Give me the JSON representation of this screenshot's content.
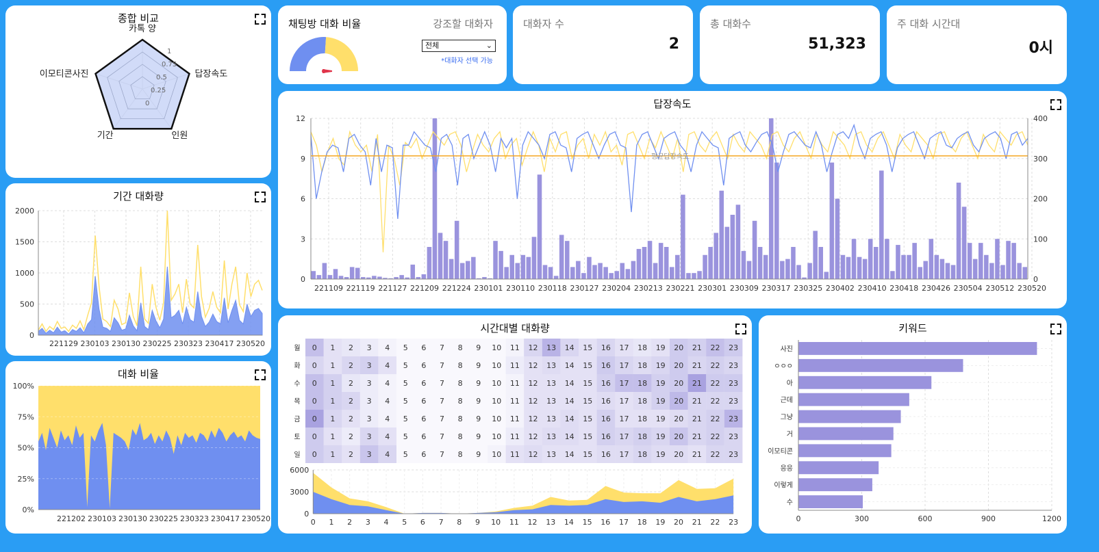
{
  "colors": {
    "blue": "#6f8ff0",
    "yellow": "#ffdf6b",
    "purple": "#9a93dd",
    "orange": "#f5a623"
  },
  "radar": {
    "title": "종합 비교",
    "axes": [
      "카톡 양",
      "답장속도",
      "인원",
      "기간",
      "이모티콘사진"
    ],
    "ticks": [
      "0",
      "0.25",
      "0.5",
      "0.75",
      "1"
    ],
    "values": [
      1,
      1,
      1,
      1,
      1
    ]
  },
  "gauge": {
    "title": "채팅방 대화 비율",
    "highlight_label": "강조할 대화자",
    "select_value": "전체",
    "hint": "*대화자 선택 가능",
    "blue_share": 0.52
  },
  "stats": {
    "speakers_label": "대화자 수",
    "speakers_value": "2",
    "total_label": "총 대화수",
    "total_value": "51,323",
    "peak_label": "주 대화 시간대",
    "peak_value": "0시"
  },
  "chart_data": [
    {
      "type": "area",
      "title": "기간 대화량",
      "ylim": [
        0,
        2000
      ],
      "yticks": [
        "0",
        "500",
        "1000",
        "1500",
        "2000"
      ],
      "xticks": [
        "221129",
        "230103",
        "230130",
        "230225",
        "230323",
        "230417",
        "230520"
      ],
      "series": [
        {
          "values": [
            60,
            110,
            30,
            80,
            40,
            130,
            50,
            70,
            20,
            90,
            60,
            120,
            40,
            180,
            250,
            950,
            420,
            130,
            110,
            60,
            280,
            200,
            80,
            100,
            320,
            150,
            70,
            520,
            140,
            90,
            400,
            230,
            120,
            260,
            1100,
            280,
            320,
            400,
            180,
            450,
            250,
            210,
            700,
            300,
            140,
            210,
            340,
            220,
            180,
            600,
            200,
            400,
            560,
            240,
            180,
            500,
            300,
            400,
            430,
            350
          ]
        },
        {
          "values": [
            80,
            180,
            60,
            140,
            90,
            220,
            110,
            130,
            60,
            160,
            110,
            230,
            90,
            320,
            520,
            1600,
            780,
            260,
            220,
            140,
            560,
            420,
            170,
            200,
            680,
            300,
            150,
            1100,
            260,
            190,
            820,
            450,
            240,
            520,
            2000,
            560,
            660,
            820,
            360,
            900,
            500,
            440,
            1450,
            620,
            290,
            430,
            700,
            450,
            360,
            1200,
            420,
            820,
            1100,
            490,
            380,
            1000,
            620,
            820,
            880,
            720
          ]
        }
      ]
    },
    {
      "type": "area",
      "title": "대화 비율",
      "yticks": [
        "0%",
        "25%",
        "50%",
        "75%",
        "100%"
      ],
      "xticks": [
        "221202",
        "230103",
        "230130",
        "230225",
        "230323",
        "230417",
        "230520"
      ],
      "series": [
        {
          "values": [
            0.55,
            0.62,
            0.48,
            0.66,
            0.58,
            0.5,
            0.64,
            0.56,
            0.6,
            0.52,
            0.68,
            0.58,
            0.62,
            0.02,
            0.6,
            0.55,
            0.64,
            0.7,
            0.52,
            0.01,
            0.62,
            0.6,
            0.58,
            0.55,
            0.48,
            0.65,
            0.6,
            0.7,
            0.56,
            0.58,
            0.62,
            0.53,
            0.6,
            0.55,
            0.64,
            0.58,
            0.45,
            0.6,
            0.52,
            0.62,
            0.58,
            0.6,
            0.54,
            0.62,
            0.6,
            0.55,
            0.64,
            0.58,
            0.66,
            0.62,
            0.55,
            0.6,
            0.63,
            0.58,
            0.6,
            0.55,
            0.64,
            0.6,
            0.58,
            0.57
          ]
        }
      ]
    },
    {
      "type": "line",
      "title": "답장속도",
      "yticks_left": [
        "0",
        "3",
        "6",
        "9",
        "12"
      ],
      "yticks_right": [
        "0",
        "100",
        "200",
        "300",
        "400"
      ],
      "xticks": [
        "221109",
        "221119",
        "221127",
        "221209",
        "221224",
        "230101",
        "230110",
        "230118",
        "230127",
        "230204",
        "230213",
        "230221",
        "230301",
        "230309",
        "230317",
        "230325",
        "230402",
        "230410",
        "230418",
        "230426",
        "230504",
        "230512",
        "230520"
      ],
      "avg_label": "평균답장속도",
      "avg_value": 9.2,
      "bars": [
        20,
        10,
        40,
        10,
        25,
        8,
        5,
        30,
        28,
        5,
        4,
        8,
        6,
        3,
        2,
        5,
        10,
        4,
        36,
        5,
        12,
        80,
        400,
        115,
        95,
        50,
        145,
        40,
        45,
        55,
        2,
        5,
        2,
        95,
        70,
        30,
        60,
        40,
        60,
        55,
        105,
        260,
        35,
        30,
        8,
        110,
        95,
        30,
        45,
        15,
        55,
        35,
        40,
        30,
        15,
        20,
        40,
        25,
        45,
        75,
        80,
        95,
        40,
        90,
        80,
        30,
        60,
        210,
        15,
        15,
        20,
        60,
        80,
        115,
        220,
        130,
        160,
        185,
        70,
        45,
        145,
        80,
        60,
        400,
        290,
        45,
        50,
        80,
        35,
        4,
        40,
        120,
        80,
        18,
        290,
        200,
        60,
        55,
        100,
        55,
        50,
        100,
        80,
        270,
        100,
        20,
        85,
        60,
        60,
        90,
        30,
        45,
        100,
        60,
        50,
        40,
        35,
        240,
        180,
        90,
        50,
        90,
        60,
        40,
        100,
        35,
        95,
        90,
        40,
        30
      ],
      "line_blue": [
        10.8,
        6,
        8,
        9.5,
        10,
        9.8,
        8,
        10.5,
        10.8,
        10,
        9.5,
        7,
        10.5,
        8,
        10,
        9.8,
        4.5,
        10,
        10,
        11,
        10.5,
        10,
        9.8,
        8,
        10.5,
        10.8,
        10,
        7,
        10.5,
        10.8,
        9,
        10,
        11,
        10,
        8,
        10.5,
        9.8,
        10.5,
        6,
        10,
        11,
        10.5,
        10,
        9,
        10.8,
        11,
        10,
        9.8,
        8,
        10.5,
        10.8,
        11,
        10,
        9,
        10,
        10.8,
        11,
        10,
        9.8,
        5,
        10,
        10.8,
        11,
        10,
        9,
        10.5,
        10.8,
        11,
        10,
        9.5,
        8,
        10,
        11,
        10.5,
        10,
        9.8,
        7,
        10.5,
        10.8,
        11,
        10,
        9.5,
        10.2,
        10.8,
        11,
        10,
        8,
        9.5,
        10.8,
        11,
        10.5,
        10,
        9.8,
        11,
        10,
        8,
        9.5,
        10.8,
        11,
        10.5,
        11.5,
        10,
        9,
        10.5,
        10.8,
        11,
        10,
        8,
        9.8,
        10.5,
        10.8,
        11,
        10,
        9,
        10.5,
        10.8,
        11,
        10,
        9.8,
        10.5,
        10.8,
        11,
        10,
        9.5,
        10.5,
        10.8,
        11,
        10.5,
        9,
        10.8,
        11,
        10,
        10.5
      ],
      "line_yellow": [
        11,
        10,
        8,
        9.5,
        10.5,
        9,
        8.5,
        11,
        10,
        9.5,
        10,
        8,
        10.8,
        2,
        10,
        9,
        7,
        10.2,
        9.8,
        10.5,
        9,
        10,
        11,
        10.5,
        10,
        10.8,
        11,
        10,
        8,
        9.5,
        10.8,
        10,
        9.5,
        10.5,
        11,
        9,
        10,
        10.5,
        8.5,
        9.8,
        11,
        10,
        8,
        10.5,
        9.5,
        10.8,
        11,
        9,
        10,
        10.5,
        9,
        10.8,
        10,
        11,
        9.5,
        10,
        8.5,
        10.8,
        11,
        10,
        9,
        10.5,
        9.8,
        11,
        10,
        9,
        10.5,
        8,
        10.8,
        11,
        10,
        9.5,
        10.5,
        11,
        10,
        9,
        10.8,
        10,
        9.5,
        11,
        10.5,
        10,
        9,
        10.8,
        11,
        10,
        9.5,
        10.5,
        11,
        10,
        9,
        10.8,
        10,
        9.5,
        11,
        10.5,
        10,
        9,
        10.8,
        11,
        10,
        9.5,
        10.5,
        11,
        10,
        9,
        10.8,
        10,
        9.5,
        11,
        10.5,
        10,
        9,
        10.8,
        11,
        10,
        9.5,
        10.5,
        11,
        10,
        9,
        10.8,
        10,
        9.5,
        11,
        10.5,
        10,
        10.8,
        11,
        10
      ]
    },
    {
      "type": "heatmap",
      "title": "시간대별 대화량",
      "rows": [
        "월",
        "화",
        "수",
        "목",
        "금",
        "토",
        "일"
      ],
      "cols": [
        "0",
        "1",
        "2",
        "3",
        "4",
        "5",
        "6",
        "7",
        "8",
        "9",
        "10",
        "11",
        "12",
        "13",
        "14",
        "15",
        "16",
        "17",
        "18",
        "19",
        "20",
        "21",
        "22",
        "23"
      ],
      "values": [
        [
          0.5,
          0.2,
          0.15,
          0.1,
          0.05,
          0,
          0,
          0,
          0,
          0,
          0,
          0.05,
          0.3,
          0.6,
          0.3,
          0.2,
          0.3,
          0.2,
          0.15,
          0.2,
          0.4,
          0.35,
          0.5,
          0.4
        ],
        [
          0.3,
          0.2,
          0.3,
          0.35,
          0.2,
          0,
          0,
          0,
          0,
          0,
          0,
          0.1,
          0.2,
          0.25,
          0.2,
          0.2,
          0.4,
          0.3,
          0.25,
          0.3,
          0.4,
          0.3,
          0.35,
          0.3
        ],
        [
          0.5,
          0.35,
          0.15,
          0.1,
          0.05,
          0,
          0,
          0,
          0,
          0,
          0,
          0.05,
          0.2,
          0.2,
          0.2,
          0.2,
          0.35,
          0.5,
          0.5,
          0.35,
          0.4,
          0.75,
          0.4,
          0.4
        ],
        [
          0.5,
          0.35,
          0.3,
          0.1,
          0.05,
          0,
          0,
          0,
          0,
          0,
          0,
          0.05,
          0.2,
          0.2,
          0.2,
          0.2,
          0.25,
          0.2,
          0.25,
          0.35,
          0.55,
          0.3,
          0.3,
          0.3
        ],
        [
          0.75,
          0.3,
          0.2,
          0.1,
          0.05,
          0,
          0,
          0,
          0,
          0,
          0,
          0.05,
          0.2,
          0.2,
          0.25,
          0.2,
          0.35,
          0.2,
          0.2,
          0.2,
          0.25,
          0.3,
          0.35,
          0.6
        ],
        [
          0.4,
          0.2,
          0.1,
          0.3,
          0.2,
          0,
          0,
          0,
          0,
          0,
          0,
          0.1,
          0.2,
          0.25,
          0.25,
          0.2,
          0.35,
          0.3,
          0.35,
          0.3,
          0.45,
          0.3,
          0.35,
          0.3
        ],
        [
          0.4,
          0.3,
          0.2,
          0.45,
          0.3,
          0,
          0,
          0,
          0,
          0,
          0.05,
          0.2,
          0.25,
          0.2,
          0.2,
          0.2,
          0.25,
          0.25,
          0.3,
          0.25,
          0.25,
          0.2,
          0.3,
          0.3
        ]
      ],
      "area_yticks": [
        "0",
        "3000",
        "6000"
      ],
      "area_blue": [
        3000,
        2000,
        1200,
        1000,
        500,
        0,
        100,
        100,
        0,
        100,
        200,
        500,
        600,
        1200,
        1100,
        1200,
        2000,
        1600,
        1700,
        1500,
        2300,
        1700,
        2000,
        2500
      ],
      "area_yellow": [
        2600,
        1600,
        900,
        700,
        400,
        0,
        0,
        0,
        0,
        0,
        100,
        300,
        500,
        1100,
        700,
        700,
        1800,
        1300,
        1100,
        1300,
        2300,
        1700,
        1500,
        2300
      ]
    },
    {
      "type": "bar",
      "title": "키워드",
      "categories": [
        "사진",
        "ㅇㅇㅇ",
        "아",
        "근데",
        "그냥",
        "거",
        "이모티콘",
        "응응",
        "이렇게",
        "수"
      ],
      "values": [
        1130,
        780,
        630,
        525,
        485,
        450,
        440,
        380,
        350,
        305
      ],
      "xticks": [
        "0",
        "300",
        "600",
        "900",
        "1200"
      ],
      "xlim": [
        0,
        1200
      ]
    }
  ]
}
